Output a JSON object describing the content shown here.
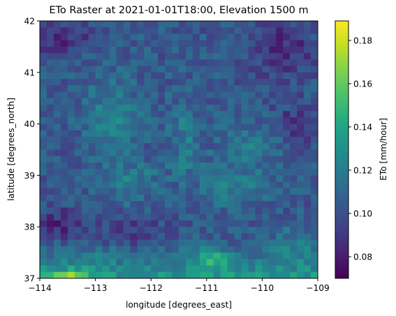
{
  "chart_data": {
    "type": "heatmap",
    "title": "ETo Raster at 2021-01-01T18:00, Elevation 1500 m",
    "xlabel": "longitude [degrees_east]",
    "ylabel": "latitude [degrees_north]",
    "xlim": [
      -114,
      -109
    ],
    "ylim": [
      37,
      42
    ],
    "x_ticks": [
      -114,
      -113,
      -112,
      -111,
      -110,
      -109
    ],
    "x_tick_labels": [
      "−114",
      "−113",
      "−112",
      "−111",
      "−110",
      "−109"
    ],
    "y_ticks": [
      37,
      38,
      39,
      40,
      41,
      42
    ],
    "y_tick_labels": [
      "37",
      "38",
      "39",
      "40",
      "41",
      "42"
    ],
    "colorbar": {
      "label": "ETo [mm/hour]",
      "range": [
        0.07,
        0.189
      ],
      "colormap": "viridis",
      "ticks": [
        0.08,
        0.1,
        0.12,
        0.14,
        0.16,
        0.18
      ],
      "tick_labels": [
        "0.08",
        "0.10",
        "0.12",
        "0.14",
        "0.16",
        "0.18"
      ]
    },
    "grid": {
      "cols": 40,
      "rows": 40,
      "lon_step": 0.125,
      "lat_step": 0.125,
      "lat_origin": 42,
      "lon_origin": -114,
      "description_of_values": "ETo values per cell, approximate; row 0 = north (42°N)"
    }
  }
}
